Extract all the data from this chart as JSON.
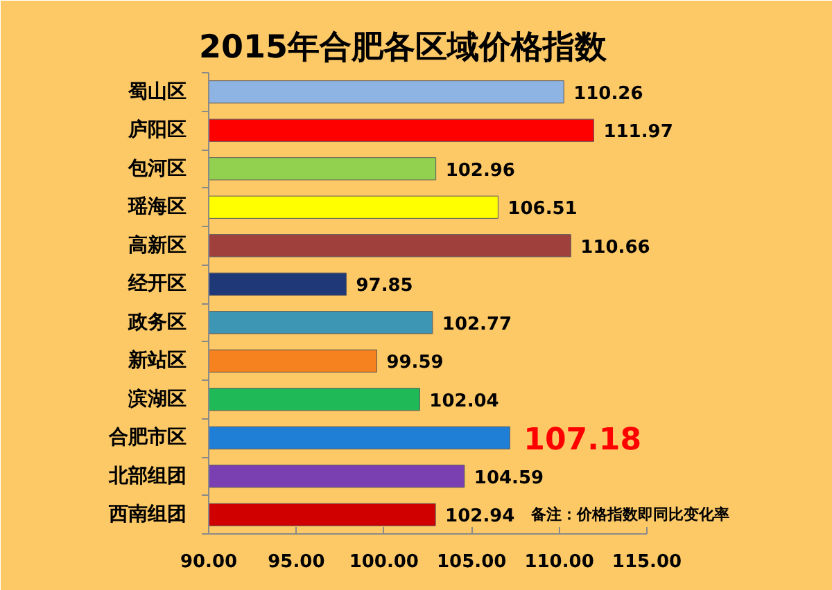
{
  "chart_data": {
    "type": "bar",
    "orientation": "horizontal",
    "title": "2015年合肥各区域价格指数",
    "categories": [
      "蜀山区",
      "庐阳区",
      "包河区",
      "瑶海区",
      "高新区",
      "经开区",
      "政务区",
      "新站区",
      "滨湖区",
      "合肥市区",
      "北部组团",
      "西南组团"
    ],
    "values": [
      110.26,
      111.97,
      102.96,
      106.51,
      110.66,
      97.85,
      102.77,
      99.59,
      102.04,
      107.18,
      104.59,
      102.94
    ],
    "colors": [
      "#8db4e2",
      "#ff0000",
      "#92d050",
      "#ffff00",
      "#a0403c",
      "#1f3878",
      "#3d97b4",
      "#f5821f",
      "#1fb957",
      "#1f7fd6",
      "#7a3fb0",
      "#d00000"
    ],
    "value_labels": [
      "110.26",
      "111.97",
      "102.96",
      "106.51",
      "110.66",
      "97.85",
      "102.77",
      "99.59",
      "102.04",
      null,
      "104.59",
      "102.94"
    ],
    "annotations": [
      {
        "text": "107.18",
        "x": 107.18,
        "y": "合肥市区"
      },
      "备注：价格指数即同比变化率"
    ],
    "xlim": [
      90,
      115
    ],
    "xticks": [
      {
        "value": 90,
        "label": "90.00"
      },
      {
        "value": 95,
        "label": "95.00"
      },
      {
        "value": 100,
        "label": "100.00"
      },
      {
        "value": 105,
        "label": "105.00"
      },
      {
        "value": 110,
        "label": "110.00"
      },
      {
        "value": 115,
        "label": "115.00"
      }
    ]
  }
}
